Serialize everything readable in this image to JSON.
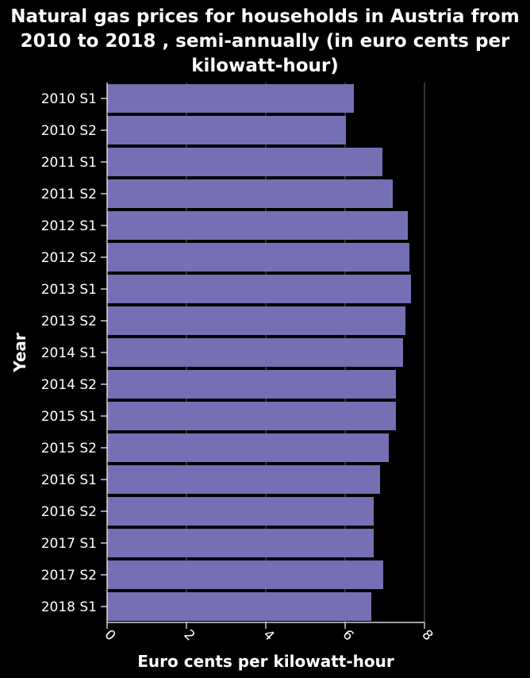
{
  "chart_data": {
    "type": "bar",
    "orientation": "horizontal",
    "title": "Natural gas prices for households in Austria from 2010 to 2018 , semi-annually (in euro cents per kilowatt-hour)",
    "xlabel": "Euro cents per kilowatt-hour",
    "ylabel": "Year",
    "xlim": [
      0,
      8
    ],
    "xticks": [
      "0",
      "2",
      "4",
      "6",
      "8"
    ],
    "categories": [
      "2010 S1",
      "2010 S2",
      "2011 S1",
      "2011 S2",
      "2012 S1",
      "2012 S2",
      "2013 S1",
      "2013 S2",
      "2014 S1",
      "2014 S2",
      "2015 S1",
      "2015 S2",
      "2016 S1",
      "2016 S2",
      "2017 S1",
      "2017 S2",
      "2018 S1"
    ],
    "values": [
      6.22,
      6.02,
      6.94,
      7.2,
      7.58,
      7.62,
      7.66,
      7.52,
      7.46,
      7.28,
      7.28,
      7.1,
      6.88,
      6.72,
      6.72,
      6.96,
      6.66
    ],
    "grid": true,
    "colors": {
      "bar": "#7570b3",
      "background": "#000000",
      "text": "#ffffff",
      "grid": "#666666"
    }
  }
}
